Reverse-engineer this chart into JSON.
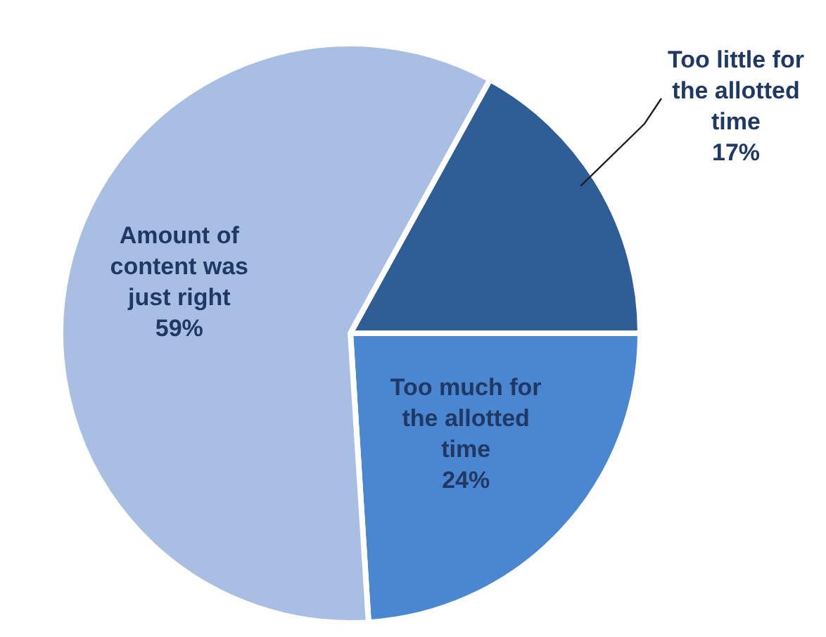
{
  "chart_data": {
    "type": "pie",
    "categories": [
      "Too little for the allotted time",
      "Too much for the allotted time",
      "Amount of content was just right"
    ],
    "values": [
      17,
      24,
      59
    ],
    "value_labels": [
      "17%",
      "24%",
      "59%"
    ],
    "colors": [
      "#2f5d95",
      "#4a87d0",
      "#a8bee2"
    ],
    "legend": false
  }
}
